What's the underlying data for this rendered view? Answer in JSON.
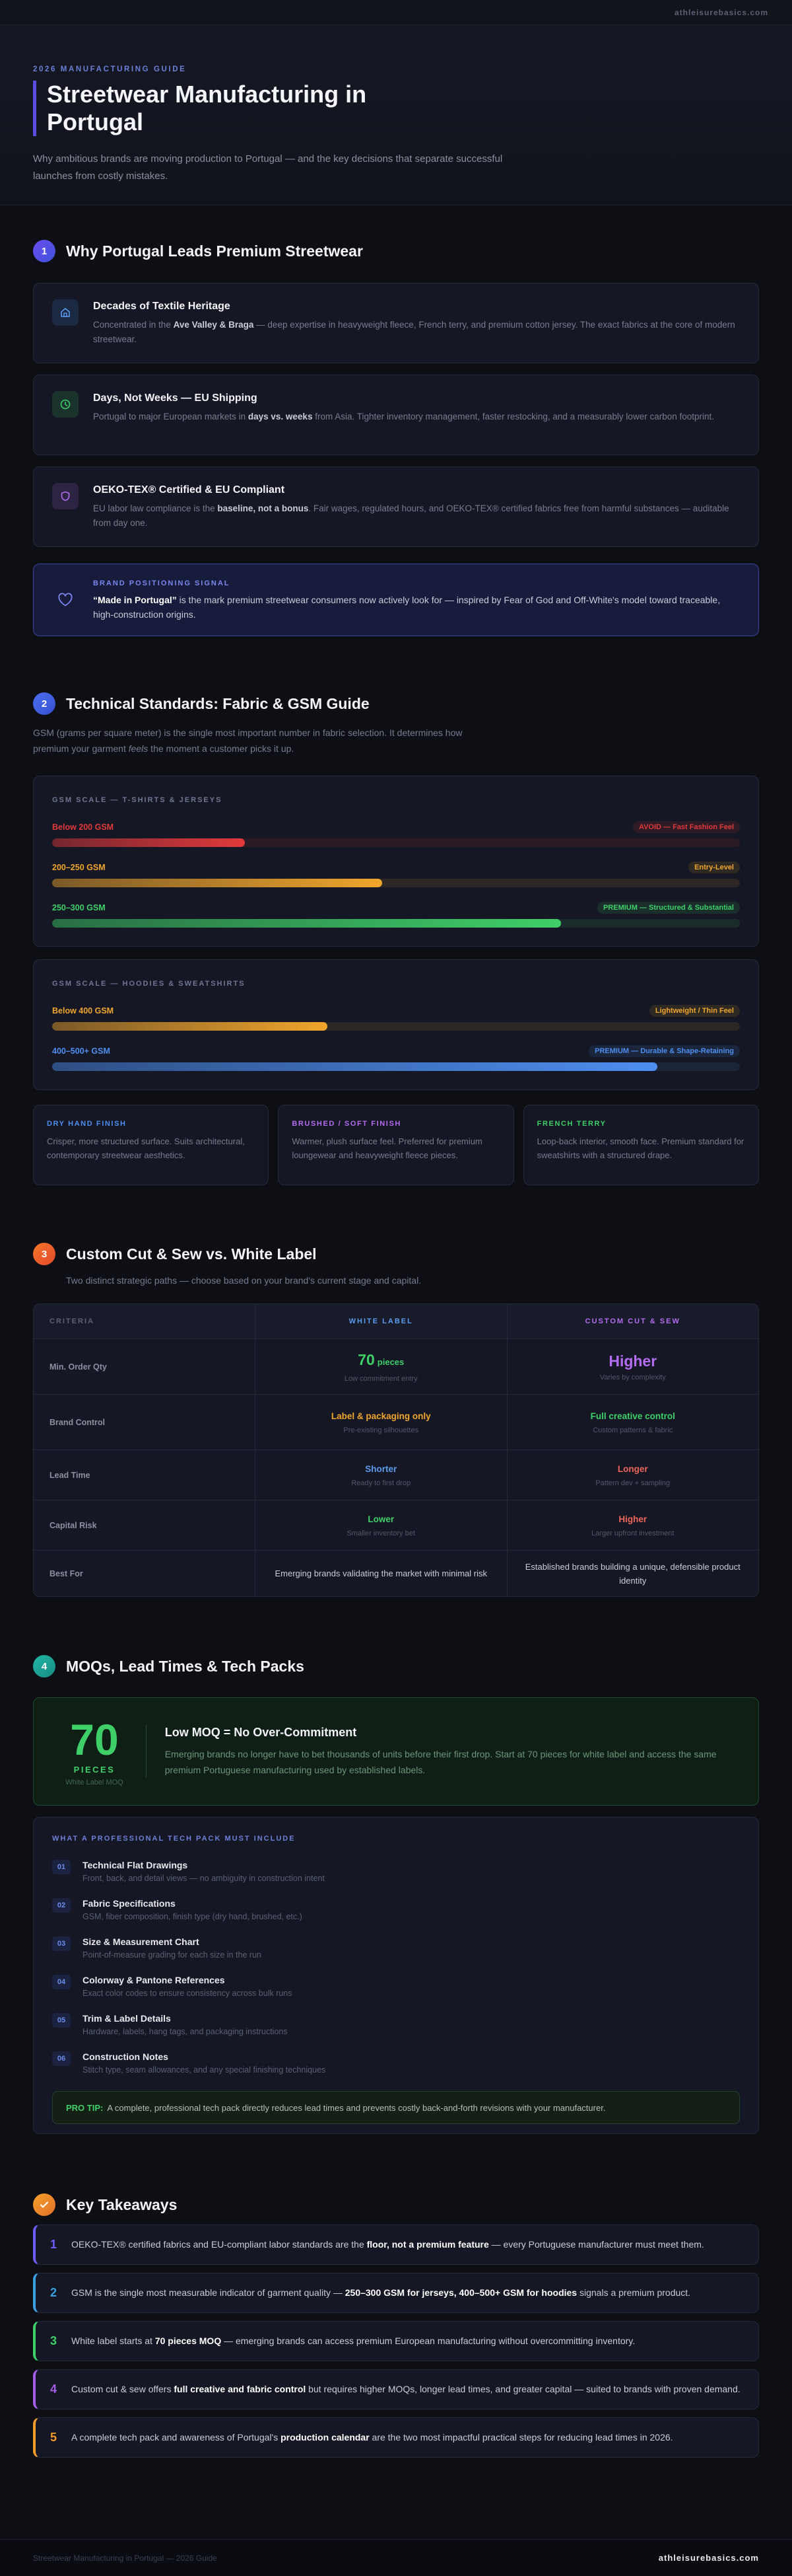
{
  "top_bar": {
    "site": "athleisurebasics.com"
  },
  "header": {
    "eyebrow": "2026 MANUFACTURING GUIDE",
    "title": "Streetwear Manufacturing in Portugal",
    "subtitle": "Why ambitious brands are moving production to Portugal — and the key decisions that separate successful launches from costly mistakes."
  },
  "why_portugal": {
    "number": "1",
    "title": "Why Portugal Leads Premium Streetwear",
    "cards": [
      {
        "title": "Decades of Textile Heritage",
        "text": [
          "Concentrated in the ",
          {
            "bold": "Ave Valley & Braga"
          },
          " — deep expertise in heavyweight fleece, French terry, and premium cotton jersey. The exact fabrics at the core of modern streetwear."
        ]
      },
      {
        "title": "Days, Not Weeks — EU Shipping",
        "text": [
          "Portugal to major European markets in ",
          {
            "bold": "days vs. weeks"
          },
          " from Asia. Tighter inventory management, faster restocking, and a measurably lower carbon footprint."
        ]
      },
      {
        "title": "OEKO-TEX® Certified & EU Compliant",
        "text": [
          "EU labor law compliance is the ",
          {
            "bold": "baseline, not a bonus"
          },
          ". Fair wages, regulated hours, and OEKO-TEX® certified fabrics free from harmful substances — auditable from day one."
        ]
      }
    ],
    "signal": {
      "label": "BRAND POSITIONING SIGNAL",
      "text": [
        {
          "bold": "“Made in Portugal”"
        },
        " is the mark premium streetwear consumers now actively look for — inspired by Fear of God and Off-White's model toward traceable, high-construction origins."
      ]
    }
  },
  "technical_standards": {
    "number": "2",
    "title": "Technical Standards: Fabric & GSM Guide",
    "intro": [
      "GSM (grams per square meter) is the single most important number in fabric selection. It determines how premium your garment ",
      {
        "em": "feels"
      },
      " the moment a customer picks it up."
    ],
    "scales": [
      {
        "label": "GSM SCALE — T-SHIRTS & JERSEYS",
        "rows": [
          {
            "name": "Below 200 GSM",
            "badge": "AVOID — Fast Fashion Feel",
            "color": "#e0393b",
            "level": 28
          },
          {
            "name": "200–250 GSM",
            "badge": "Entry-Level",
            "color": "#f0a52c",
            "level": 48
          },
          {
            "name": "250–300 GSM",
            "badge": "PREMIUM — Structured & Substantial",
            "color": "#3fcf68",
            "level": 74
          }
        ]
      },
      {
        "label": "GSM SCALE — HOODIES & SWEATSHIRTS",
        "rows": [
          {
            "name": "Below 400 GSM",
            "badge": "Lightweight / Thin Feel",
            "color": "#f0a52c",
            "level": 40
          },
          {
            "name": "400–500+ GSM",
            "badge": "PREMIUM — Durable & Shape-Retaining",
            "color": "#4d8ef0",
            "level": 88
          }
        ]
      }
    ],
    "finishes": [
      {
        "title": "DRY HAND FINISH",
        "color": "#4d8ef0",
        "text": "Crisper, more structured surface. Suits architectural, contemporary streetwear aesthetics."
      },
      {
        "title": "BRUSHED / SOFT FINISH",
        "color": "#b46cf0",
        "text": "Warmer, plush surface feel. Preferred for premium loungewear and heavyweight fleece pieces."
      },
      {
        "title": "FRENCH TERRY",
        "color": "#3fcf68",
        "text": "Loop-back interior, smooth face. Premium standard for sweatshirts with a structured drape."
      }
    ]
  },
  "cut_vs_label": {
    "number": "3",
    "title": "Custom Cut & Sew vs. White Label",
    "subtitle": "Two distinct strategic paths — choose based on your brand's current stage and capital.",
    "table": {
      "columns": [
        {
          "label": "CRITERIA",
          "color": "#5c6275"
        },
        {
          "label": "WHITE LABEL",
          "color": "#5b9cf0"
        },
        {
          "label": "CUSTOM CUT & SEW",
          "color": "#b46cf0"
        }
      ],
      "rows": [
        {
          "criterion": "Min. Order Qty",
          "cells": [
            {
              "value": "70",
              "unit": "pieces",
              "note": "Low commitment entry",
              "color": "#3fcf68"
            },
            {
              "value": "Higher",
              "note": "Varies by complexity",
              "color": "#b46cf0"
            }
          ]
        },
        {
          "criterion": "Brand Control",
          "cells": [
            {
              "value": "Label & packaging only",
              "note": "Pre-existing silhouettes",
              "color": "#f0a52c"
            },
            {
              "value": "Full creative control",
              "note": "Custom patterns & fabric",
              "color": "#3fcf68"
            }
          ]
        },
        {
          "criterion": "Lead Time",
          "cells": [
            {
              "value": "Shorter",
              "note": "Ready to first drop",
              "color": "#5b9cf0"
            },
            {
              "value": "Longer",
              "note": "Pattern dev + sampling",
              "color": "#f0645a"
            }
          ]
        },
        {
          "criterion": "Capital Risk",
          "cells": [
            {
              "value": "Lower",
              "note": "Smaller inventory bet",
              "color": "#3fcf68"
            },
            {
              "value": "Higher",
              "note": "Larger upfront investment",
              "color": "#f0645a"
            }
          ]
        },
        {
          "criterion": "Best For",
          "cells": [
            {
              "value": "Emerging brands validating the market with minimal risk"
            },
            {
              "value": "Established brands building a unique, defensible product identity"
            }
          ]
        }
      ]
    }
  },
  "moq": {
    "number": "4",
    "title": "MOQs, Lead Times & Tech Packs",
    "highlight": {
      "figure": "70",
      "figure_unit": "PIECES",
      "figure_caption": "White Label MOQ",
      "title": "Low MOQ = No Over-Commitment",
      "text": "Emerging brands no longer have to bet thousands of units before their first drop. Start at 70 pieces for white label and access the same premium Portuguese manufacturing used by established labels."
    },
    "tech_pack": {
      "label": "WHAT A PROFESSIONAL TECH PACK MUST INCLUDE",
      "items": [
        {
          "number": "01",
          "title": "Technical Flat Drawings",
          "text": "Front, back, and detail views — no ambiguity in construction intent"
        },
        {
          "number": "02",
          "title": "Fabric Specifications",
          "text": "GSM, fiber composition, finish type (dry hand, brushed, etc.)"
        },
        {
          "number": "03",
          "title": "Size & Measurement Chart",
          "text": "Point-of-measure grading for each size in the run"
        },
        {
          "number": "04",
          "title": "Colorway & Pantone References",
          "text": "Exact color codes to ensure consistency across bulk runs"
        },
        {
          "number": "05",
          "title": "Trim & Label Details",
          "text": "Hardware, labels, hang tags, and packaging instructions"
        },
        {
          "number": "06",
          "title": "Construction Notes",
          "text": "Stitch type, seam allowances, and any special finishing techniques"
        }
      ],
      "pro_tip": {
        "label": "PRO TIP:",
        "text": "A complete, professional tech pack directly reduces lead times and prevents costly back-and-forth revisions with your manufacturer."
      }
    }
  },
  "takeaways": {
    "title": "Key Takeaways",
    "items": [
      {
        "number": "1",
        "color": "#6d5dfc",
        "text": [
          "OEKO-TEX® certified fabrics and EU-compliant labor standards are the ",
          {
            "bold": "floor, not a premium feature"
          },
          " — every Portuguese manufacturer must meet them."
        ]
      },
      {
        "number": "2",
        "color": "#3aa0e0",
        "text": [
          "GSM is the single most measurable indicator of garment quality — ",
          {
            "bold": "250–300 GSM for jerseys, 400–500+ GSM for hoodies"
          },
          " signals a premium product."
        ]
      },
      {
        "number": "3",
        "color": "#3fcf68",
        "text": [
          "White label starts at ",
          {
            "bold": "70 pieces MOQ"
          },
          " — emerging brands can access premium European manufacturing without overcommitting inventory."
        ]
      },
      {
        "number": "4",
        "color": "#a35ee8",
        "text": [
          "Custom cut & sew offers ",
          {
            "bold": "full creative and fabric control"
          },
          " but requires higher MOQs, longer lead times, and greater capital — suited to brands with proven demand."
        ]
      },
      {
        "number": "5",
        "color": "#f09a2a",
        "text": [
          "A complete tech pack and awareness of Portugal's ",
          {
            "bold": "production calendar"
          },
          " are the two most impactful practical steps for reducing lead times in 2026."
        ]
      }
    ]
  },
  "footer": {
    "left": "Streetwear Manufacturing in Portugal — 2026 Guide",
    "right": "athleisurebasics.com"
  }
}
